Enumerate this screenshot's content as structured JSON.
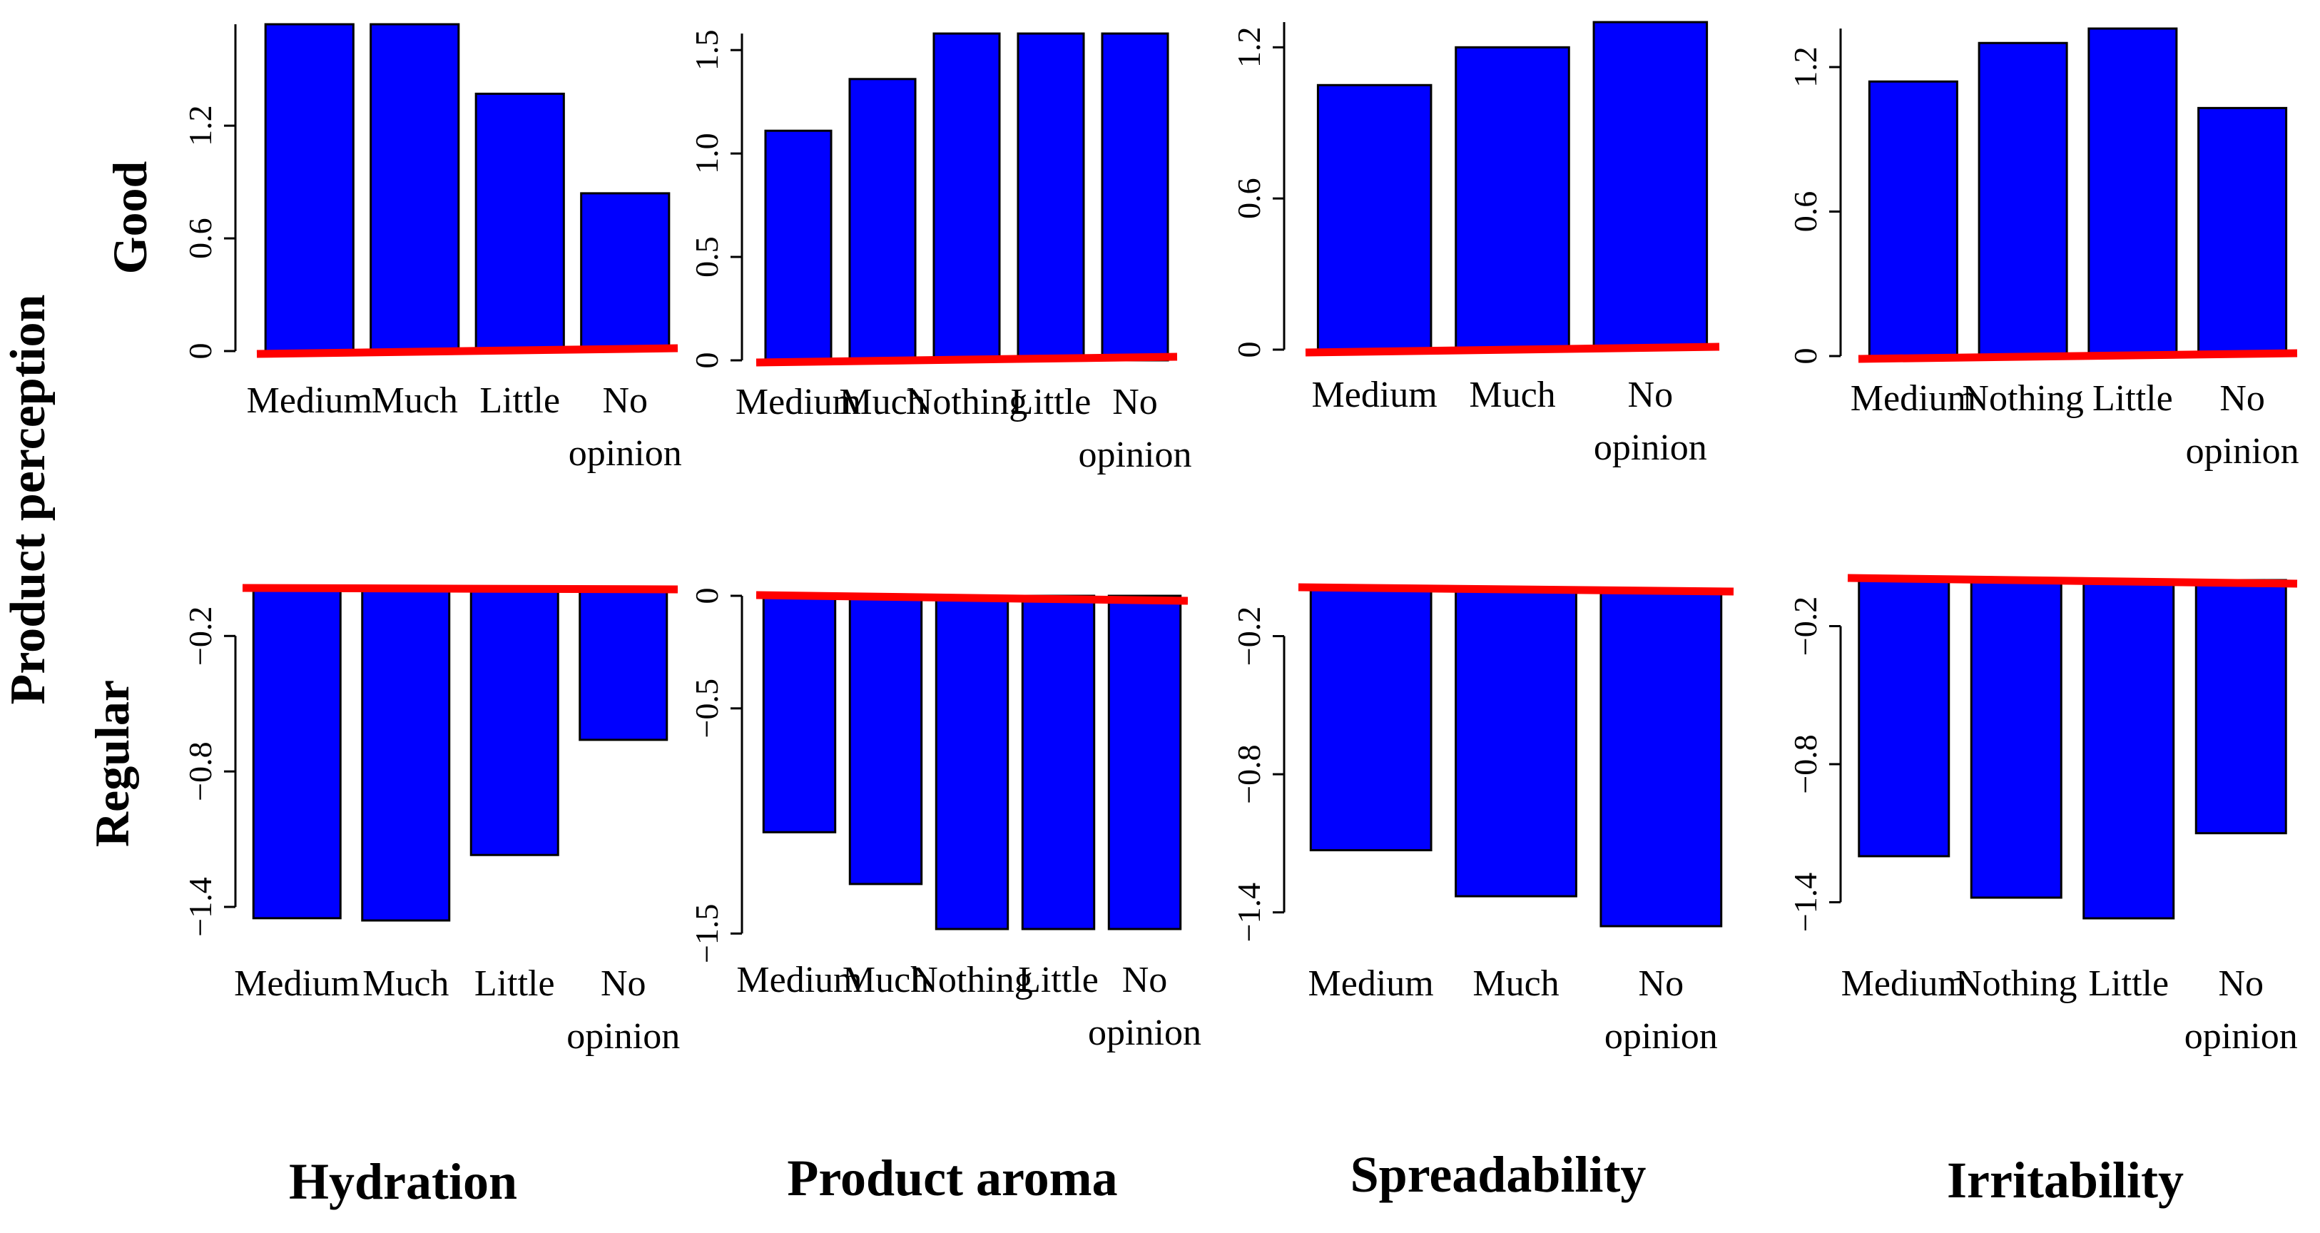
{
  "figure": {
    "ylabel": "Product perception",
    "row_titles": [
      "Good",
      "Regular"
    ],
    "column_titles": [
      "Hydration",
      "Product aroma",
      "Spreadability",
      "Irritability"
    ]
  },
  "colors": {
    "bar_fill": "#0000ff",
    "bar_stroke": "#000000",
    "baseline": "#ff0000"
  },
  "chart_data": [
    {
      "type": "bar",
      "row": "Good",
      "column": "Hydration",
      "categories": [
        [
          "Medium"
        ],
        [
          "Much"
        ],
        [
          "Little"
        ],
        [
          "No",
          "opinion"
        ]
      ],
      "values": [
        1.74,
        1.74,
        1.37,
        0.84
      ],
      "ylim": [
        0,
        1.74
      ],
      "yticks": [
        0,
        0.6,
        1.2
      ],
      "ytick_labels": [
        "0",
        "0.6",
        "1.2"
      ]
    },
    {
      "type": "bar",
      "row": "Good",
      "column": "Product aroma",
      "categories": [
        [
          "Medium"
        ],
        [
          "Much"
        ],
        [
          "Nothing"
        ],
        [
          "Little"
        ],
        [
          "No",
          "opinion"
        ]
      ],
      "values": [
        1.11,
        1.36,
        1.58,
        1.58,
        1.58
      ],
      "ylim": [
        0,
        1.58
      ],
      "yticks": [
        0,
        0.5,
        1.0,
        1.5
      ],
      "ytick_labels": [
        "0",
        "0.5",
        "1.0",
        "1.5"
      ]
    },
    {
      "type": "bar",
      "row": "Good",
      "column": "Spreadability",
      "categories": [
        [
          "Medium"
        ],
        [
          "Much"
        ],
        [
          "No",
          "opinion"
        ]
      ],
      "values": [
        1.05,
        1.2,
        1.3
      ],
      "ylim": [
        0,
        1.3
      ],
      "yticks": [
        0,
        0.6,
        1.2
      ],
      "ytick_labels": [
        "0",
        "0.6",
        "1.2"
      ]
    },
    {
      "type": "bar",
      "row": "Good",
      "column": "Irritability",
      "categories": [
        [
          "Medium"
        ],
        [
          "Nothing"
        ],
        [
          "Little"
        ],
        [
          "No",
          "opinion"
        ]
      ],
      "values": [
        1.14,
        1.3,
        1.36,
        1.03
      ],
      "ylim": [
        0,
        1.36
      ],
      "yticks": [
        0,
        0.6,
        1.2
      ],
      "ytick_labels": [
        "0",
        "0.6",
        "1.2"
      ]
    },
    {
      "type": "bar",
      "row": "Regular",
      "column": "Hydration",
      "categories": [
        [
          "Medium"
        ],
        [
          "Much"
        ],
        [
          "Little"
        ],
        [
          "No",
          "opinion"
        ]
      ],
      "values": [
        -1.45,
        -1.46,
        -1.17,
        -0.66
      ],
      "ylim": [
        -1.46,
        0
      ],
      "yticks": [
        -1.4,
        -0.8,
        -0.2
      ],
      "ytick_labels": [
        "−1.4",
        "−0.8",
        "−0.2"
      ]
    },
    {
      "type": "bar",
      "row": "Regular",
      "column": "Product aroma",
      "categories": [
        [
          "Medium"
        ],
        [
          "Much"
        ],
        [
          "Nothing"
        ],
        [
          "Little"
        ],
        [
          "No",
          "opinion"
        ]
      ],
      "values": [
        -1.05,
        -1.28,
        -1.48,
        -1.48,
        -1.48
      ],
      "ylim": [
        -1.48,
        0
      ],
      "yticks": [
        -1.5,
        -0.5,
        0
      ],
      "ytick_labels": [
        "−1.5",
        "−0.5",
        "0"
      ]
    },
    {
      "type": "bar",
      "row": "Regular",
      "column": "Spreadability",
      "categories": [
        [
          "Medium"
        ],
        [
          "Much"
        ],
        [
          "No",
          "opinion"
        ]
      ],
      "values": [
        -1.13,
        -1.33,
        -1.46
      ],
      "ylim": [
        -1.46,
        0
      ],
      "yticks": [
        -1.4,
        -0.8,
        -0.2
      ],
      "ytick_labels": [
        "−1.4",
        "−0.8",
        "−0.2"
      ]
    },
    {
      "type": "bar",
      "row": "Regular",
      "column": "Irritability",
      "categories": [
        [
          "Medium"
        ],
        [
          "Nothing"
        ],
        [
          "Little"
        ],
        [
          "No",
          "opinion"
        ]
      ],
      "values": [
        -1.2,
        -1.38,
        -1.47,
        -1.1
      ],
      "ylim": [
        -1.47,
        0
      ],
      "yticks": [
        -1.4,
        -0.8,
        -0.2
      ],
      "ytick_labels": [
        "−1.4",
        "−0.8",
        "−0.2"
      ]
    }
  ]
}
